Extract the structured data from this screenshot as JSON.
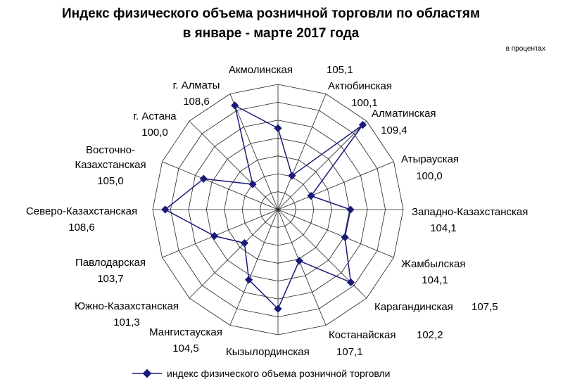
{
  "title_line1": "Индекс физического объема розничной торговли по областям",
  "title_line2": "в январе - марте 2017 года",
  "unit_note": "в процентах",
  "legend_label": "индекс физического объема розничной торговли",
  "colors": {
    "series": "#1a1a7a",
    "grid": "#222222",
    "text": "#000000"
  },
  "chart_data": {
    "type": "radar",
    "categories": [
      "Акмолинская",
      "Актюбинская",
      "Алматинская",
      "Атырауская",
      "Западно-Казахстанская",
      "Жамбылская",
      "Карагандинская",
      "Костанайская",
      "Кызылординская",
      "Мангистауская",
      "Южно-Казахстанская",
      "Павлодарская",
      "Северо-Казахстанская",
      "Восточно-Казахстанская",
      "г. Астана",
      "г. Алматы"
    ],
    "category_labels": [
      [
        "Акмолинская"
      ],
      [
        "Актюбинская"
      ],
      [
        "Алматинская"
      ],
      [
        "Атырауская"
      ],
      [
        "Западно-Казахстанская"
      ],
      [
        "Жамбылская"
      ],
      [
        "Карагандинская"
      ],
      [
        "Костанайская"
      ],
      [
        "Кызылординская"
      ],
      [
        "Мангистауская"
      ],
      [
        "Южно-Казахстанская"
      ],
      [
        "Павлодарская"
      ],
      [
        "Северо-Казахстанская"
      ],
      [
        "Восточно-",
        "Казахстанская"
      ],
      [
        "г. Астана"
      ],
      [
        "г. Алматы"
      ]
    ],
    "value_labels": [
      "105,1",
      "100,1",
      "109,4",
      "100,0",
      "104,1",
      "104,1",
      "107,5",
      "102,2",
      "107,1",
      "104,5",
      "101,3",
      "103,7",
      "108,6",
      "105,0",
      "100,0",
      "108,6"
    ],
    "series": [
      {
        "name": "индекс физического объема розничной торговли",
        "values": [
          105.1,
          100.1,
          109.4,
          100.0,
          104.1,
          104.1,
          107.5,
          102.2,
          107.1,
          104.5,
          101.3,
          103.7,
          108.6,
          105.0,
          100.0,
          108.6
        ]
      }
    ],
    "rlim": [
      96,
      110
    ],
    "grid_rings": 7,
    "legend_position": "bottom"
  }
}
